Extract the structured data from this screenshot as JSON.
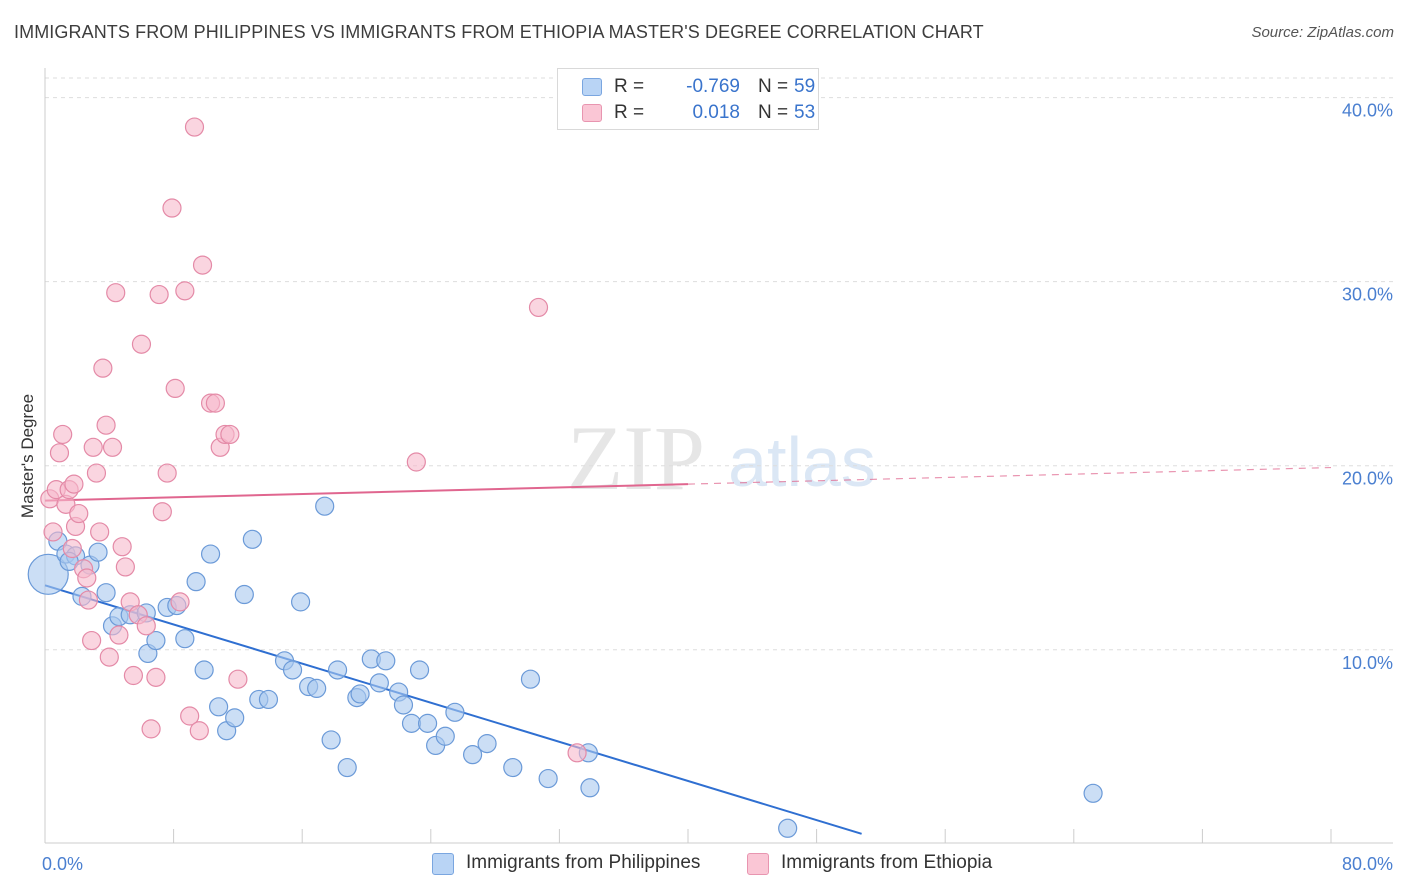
{
  "title": "IMMIGRANTS FROM PHILIPPINES VS IMMIGRANTS FROM ETHIOPIA MASTER'S DEGREE CORRELATION CHART",
  "source": "Source: ZipAtlas.com",
  "watermark": {
    "zip": "ZIP",
    "atlas": "atlas"
  },
  "stats_legend": {
    "rows": [
      {
        "r_label": "R =",
        "r_value": "-0.769",
        "n_label": "N =",
        "n_value": "59"
      },
      {
        "r_label": "R =",
        "r_value": "0.018",
        "n_label": "N =",
        "n_value": "53"
      }
    ]
  },
  "legend": {
    "series_a": "Immigrants from Philippines",
    "series_b": "Immigrants from Ethiopia"
  },
  "colors": {
    "blue_fill": "#a9c8ef",
    "blue_stroke": "#6b9ad8",
    "blue_line": "#2f6fd1",
    "pink_fill": "#f6b9cb",
    "pink_stroke": "#e48aa7",
    "pink_line": "#e0668f",
    "tick_text": "#4a7fd0",
    "grid": "#dddddd"
  },
  "chart_data": {
    "type": "scatter",
    "title": "IMMIGRANTS FROM PHILIPPINES VS IMMIGRANTS FROM ETHIOPIA MASTER'S DEGREE CORRELATION CHART",
    "xlabel": "",
    "ylabel": "Master's Degree",
    "xlim": [
      0,
      80
    ],
    "ylim": [
      -0.5,
      41.5
    ],
    "x_tick_labels": [
      {
        "value": 0,
        "label": "0.0%"
      },
      {
        "value": 80,
        "label": "80.0%"
      }
    ],
    "y_ticks": [
      {
        "value": 10,
        "label": "10.0%"
      },
      {
        "value": 20,
        "label": "20.0%"
      },
      {
        "value": 30,
        "label": "30.0%"
      },
      {
        "value": 40,
        "label": "40.0%"
      }
    ],
    "x_minor_ticks": [
      8,
      16,
      24,
      32,
      40,
      48,
      56,
      64,
      72,
      80
    ],
    "series": [
      {
        "name": "Immigrants from Philippines",
        "color": "blue",
        "r": -0.769,
        "n": 59,
        "points": [
          [
            0.2,
            14.1
          ],
          [
            0.8,
            15.9
          ],
          [
            1.3,
            15.2
          ],
          [
            1.9,
            15.1
          ],
          [
            2.3,
            12.9
          ],
          [
            2.8,
            14.6
          ],
          [
            3.3,
            15.3
          ],
          [
            3.8,
            13.1
          ],
          [
            4.2,
            11.3
          ],
          [
            4.6,
            11.8
          ],
          [
            5.3,
            11.9
          ],
          [
            6.3,
            12.0
          ],
          [
            6.4,
            9.8
          ],
          [
            6.9,
            10.5
          ],
          [
            7.6,
            12.3
          ],
          [
            8.2,
            12.4
          ],
          [
            8.7,
            10.6
          ],
          [
            9.4,
            13.7
          ],
          [
            9.9,
            8.9
          ],
          [
            10.3,
            15.2
          ],
          [
            10.8,
            6.9
          ],
          [
            11.3,
            5.6
          ],
          [
            11.8,
            6.3
          ],
          [
            12.4,
            13.0
          ],
          [
            12.9,
            16.0
          ],
          [
            13.3,
            7.3
          ],
          [
            13.9,
            7.3
          ],
          [
            14.9,
            9.4
          ],
          [
            15.4,
            8.9
          ],
          [
            15.9,
            12.6
          ],
          [
            16.4,
            8.0
          ],
          [
            16.9,
            7.9
          ],
          [
            17.4,
            17.8
          ],
          [
            17.8,
            5.1
          ],
          [
            18.2,
            8.9
          ],
          [
            18.8,
            3.6
          ],
          [
            19.4,
            7.4
          ],
          [
            19.6,
            7.6
          ],
          [
            20.3,
            9.5
          ],
          [
            20.8,
            8.2
          ],
          [
            21.2,
            9.4
          ],
          [
            22.0,
            7.7
          ],
          [
            22.3,
            7.0
          ],
          [
            22.8,
            6.0
          ],
          [
            23.3,
            8.9
          ],
          [
            23.8,
            6.0
          ],
          [
            24.3,
            4.8
          ],
          [
            24.9,
            5.3
          ],
          [
            25.5,
            6.6
          ],
          [
            26.6,
            4.3
          ],
          [
            27.5,
            4.9
          ],
          [
            29.1,
            3.6
          ],
          [
            30.2,
            8.4
          ],
          [
            31.3,
            3.0
          ],
          [
            33.8,
            4.4
          ],
          [
            33.9,
            2.5
          ],
          [
            46.2,
            0.3
          ],
          [
            65.2,
            2.2
          ],
          [
            1.5,
            14.8
          ]
        ],
        "trend_line": {
          "x1": 0,
          "y1": 13.5,
          "x2": 50.8,
          "y2": 0.0,
          "style": "solid"
        }
      },
      {
        "name": "Immigrants from Ethiopia",
        "color": "pink",
        "r": 0.018,
        "n": 53,
        "points": [
          [
            0.3,
            18.2
          ],
          [
            0.5,
            16.4
          ],
          [
            0.7,
            18.7
          ],
          [
            0.9,
            20.7
          ],
          [
            1.1,
            21.7
          ],
          [
            1.3,
            17.9
          ],
          [
            1.5,
            18.7
          ],
          [
            1.7,
            15.5
          ],
          [
            1.8,
            19.0
          ],
          [
            1.9,
            16.7
          ],
          [
            2.1,
            17.4
          ],
          [
            2.4,
            14.4
          ],
          [
            2.6,
            13.9
          ],
          [
            2.7,
            12.7
          ],
          [
            2.9,
            10.5
          ],
          [
            3.0,
            21.0
          ],
          [
            3.2,
            19.6
          ],
          [
            3.4,
            16.4
          ],
          [
            3.6,
            25.3
          ],
          [
            3.8,
            22.2
          ],
          [
            4.0,
            9.6
          ],
          [
            4.2,
            21.0
          ],
          [
            4.4,
            29.4
          ],
          [
            4.6,
            10.8
          ],
          [
            4.8,
            15.6
          ],
          [
            5.0,
            14.5
          ],
          [
            5.3,
            12.6
          ],
          [
            5.5,
            8.6
          ],
          [
            5.8,
            11.9
          ],
          [
            6.0,
            26.6
          ],
          [
            6.3,
            11.3
          ],
          [
            6.6,
            5.7
          ],
          [
            6.9,
            8.5
          ],
          [
            7.1,
            29.3
          ],
          [
            7.3,
            17.5
          ],
          [
            7.6,
            19.6
          ],
          [
            7.9,
            34.0
          ],
          [
            8.1,
            24.2
          ],
          [
            8.4,
            12.6
          ],
          [
            8.7,
            29.5
          ],
          [
            9.0,
            6.4
          ],
          [
            9.3,
            38.4
          ],
          [
            9.6,
            5.6
          ],
          [
            9.8,
            30.9
          ],
          [
            10.3,
            23.4
          ],
          [
            10.6,
            23.4
          ],
          [
            10.9,
            21.0
          ],
          [
            11.2,
            21.7
          ],
          [
            11.5,
            21.7
          ],
          [
            12.0,
            8.4
          ],
          [
            23.1,
            20.2
          ],
          [
            30.7,
            28.6
          ],
          [
            33.1,
            4.4
          ]
        ],
        "trend_line": {
          "x1": 0,
          "y1": 18.1,
          "x2": 80,
          "y2": 19.9,
          "solid_until_x": 40
        }
      }
    ]
  }
}
